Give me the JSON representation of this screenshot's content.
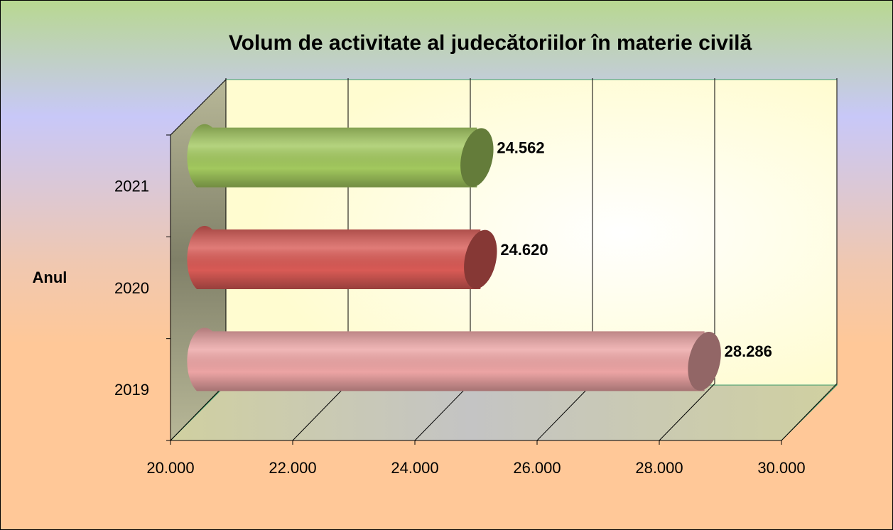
{
  "chart_data": {
    "type": "bar3d_horizontal",
    "title": "Volum de activitate al judecătoriilor în materie civilă",
    "y_label": "Anul",
    "categories": [
      "2019",
      "2020",
      "2021"
    ],
    "values": [
      28286,
      24620,
      24562
    ],
    "value_labels": [
      "28.286",
      "24.620",
      "24.562"
    ],
    "colors": [
      "#eca4a4",
      "#d85a55",
      "#a2c85e"
    ],
    "xlim": [
      20000,
      30000
    ],
    "xticks": [
      {
        "value": 20000,
        "label": "20.000"
      },
      {
        "value": 22000,
        "label": "22.000"
      },
      {
        "value": 24000,
        "label": "24.000"
      },
      {
        "value": 26000,
        "label": "26.000"
      },
      {
        "value": 28000,
        "label": "28.000"
      },
      {
        "value": 30000,
        "label": "30.000"
      }
    ],
    "grid": true
  }
}
